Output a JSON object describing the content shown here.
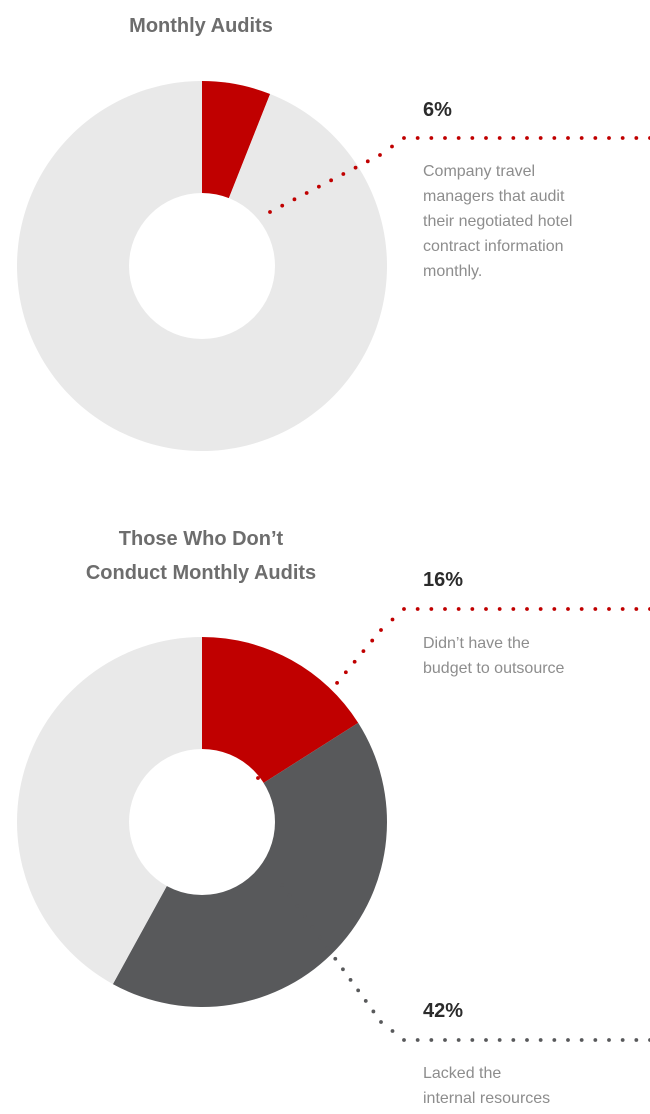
{
  "colors": {
    "accent": "#c00000",
    "dark": "#58595b",
    "rest": "#e9e9e9",
    "hole": "#ffffff",
    "connector_red": "#c00000",
    "connector_grey": "#58595b"
  },
  "chart_data": [
    {
      "type": "pie",
      "title": "Monthly Audits",
      "slices": [
        {
          "label": "Company travel managers that audit their negotiated hotel contract information monthly.",
          "value": 6,
          "color": "#c00000"
        },
        {
          "label": "",
          "value": 94,
          "color": "#e9e9e9"
        }
      ],
      "annotations": [
        {
          "value_text": "6%",
          "text": "Company travel\nmanagers that audit\ntheir negotiated hotel\ncontract information\nmonthly."
        }
      ]
    },
    {
      "type": "pie",
      "title": "Those Who Don’t\nConduct Monthly Audits",
      "slices": [
        {
          "label": "Didn’t have the budget to outsource",
          "value": 16,
          "color": "#c00000"
        },
        {
          "label": "Lacked the internal resources",
          "value": 42,
          "color": "#58595b"
        },
        {
          "label": "",
          "value": 42,
          "color": "#e9e9e9"
        }
      ],
      "annotations": [
        {
          "value_text": "16%",
          "text": "Didn’t have the\nbudget to outsource"
        },
        {
          "value_text": "42%",
          "text": "Lacked the\ninternal resources"
        }
      ]
    }
  ]
}
